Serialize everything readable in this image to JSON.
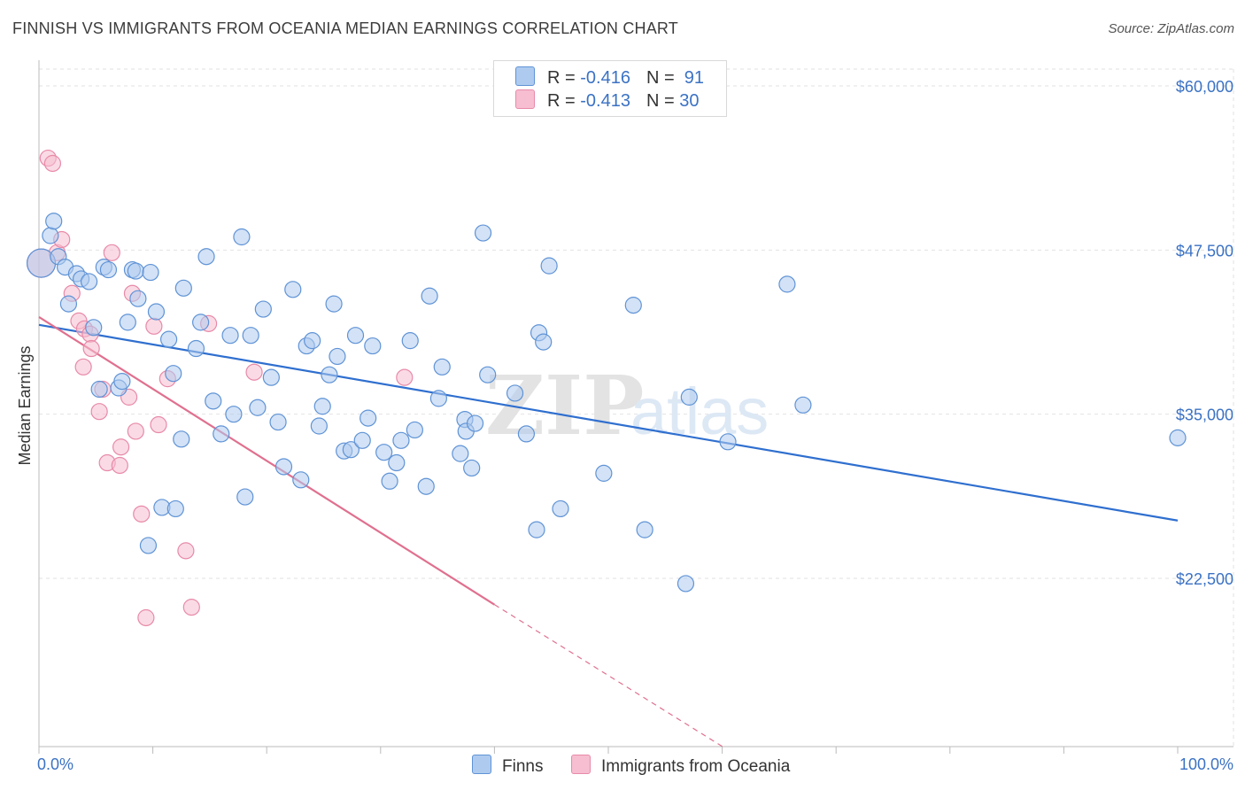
{
  "title": "FINNISH VS IMMIGRANTS FROM OCEANIA MEDIAN EARNINGS CORRELATION CHART",
  "source": "Source: ZipAtlas.com",
  "watermark": {
    "zip": "ZIP",
    "atlas": "atlas"
  },
  "legend": {
    "finns": {
      "r_label": "R = ",
      "r_value": "-0.416",
      "n_label": "N = ",
      "n_value": " 91"
    },
    "oceania": {
      "r_label": "R = ",
      "r_value": "-0.413",
      "n_label": "N = ",
      "n_value": "30"
    }
  },
  "bottom_legend": {
    "finns": "Finns",
    "oceania": "Immigrants from Oceania"
  },
  "colors": {
    "finns_fill": "#aecbef",
    "finns_stroke": "#5f93d6",
    "finns_line": "#2f6fcf",
    "oceania_fill": "#f6bed0",
    "oceania_stroke": "#e88aa8",
    "oceania_line": "#e0708f",
    "grid": "#e2e2e2",
    "axis_text": "#3b72c4"
  },
  "chart_data": {
    "type": "scatter",
    "title": "FINNISH VS IMMIGRANTS FROM OCEANIA MEDIAN EARNINGS CORRELATION CHART",
    "xlabel": "",
    "ylabel": "Median Earnings",
    "xlim": [
      0,
      100
    ],
    "ylim": [
      10000,
      62000
    ],
    "x_tick_labels": [
      "0.0%",
      "100.0%"
    ],
    "y_ticks": [
      22500,
      35000,
      47500,
      60000
    ],
    "y_tick_labels": [
      "$22,500",
      "$35,000",
      "$47,500",
      "$60,000"
    ],
    "series": [
      {
        "name": "Finns",
        "r": -0.416,
        "n": 91,
        "trend": {
          "x": [
            0,
            100
          ],
          "y": [
            41800,
            26900
          ]
        },
        "points": [
          [
            0.2,
            46500
          ],
          [
            1.0,
            48600
          ],
          [
            1.3,
            49700
          ],
          [
            1.7,
            47000
          ],
          [
            2.3,
            46200
          ],
          [
            2.6,
            43400
          ],
          [
            3.3,
            45700
          ],
          [
            3.7,
            45300
          ],
          [
            4.4,
            45100
          ],
          [
            4.8,
            41600
          ],
          [
            5.7,
            46200
          ],
          [
            6.1,
            46000
          ],
          [
            7.0,
            37000
          ],
          [
            7.3,
            37500
          ],
          [
            8.2,
            46000
          ],
          [
            7.8,
            42000
          ],
          [
            8.7,
            43800
          ],
          [
            8.5,
            45900
          ],
          [
            9.8,
            45800
          ],
          [
            10.3,
            42800
          ],
          [
            11.4,
            40700
          ],
          [
            11.8,
            38100
          ],
          [
            12.7,
            44600
          ],
          [
            13.8,
            40000
          ],
          [
            14.2,
            42000
          ],
          [
            14.7,
            47000
          ],
          [
            15.3,
            36000
          ],
          [
            16.0,
            33500
          ],
          [
            16.8,
            41000
          ],
          [
            17.1,
            35000
          ],
          [
            17.8,
            48500
          ],
          [
            18.6,
            41000
          ],
          [
            19.2,
            35500
          ],
          [
            19.7,
            43000
          ],
          [
            20.4,
            37800
          ],
          [
            21.0,
            34400
          ],
          [
            21.5,
            31000
          ],
          [
            22.3,
            44500
          ],
          [
            23.0,
            30000
          ],
          [
            23.5,
            40200
          ],
          [
            24.0,
            40600
          ],
          [
            24.6,
            34100
          ],
          [
            24.9,
            35600
          ],
          [
            25.5,
            38000
          ],
          [
            25.9,
            43400
          ],
          [
            26.2,
            39400
          ],
          [
            26.8,
            32200
          ],
          [
            27.4,
            32300
          ],
          [
            27.8,
            41000
          ],
          [
            28.4,
            33000
          ],
          [
            28.9,
            34700
          ],
          [
            29.3,
            40200
          ],
          [
            30.3,
            32100
          ],
          [
            30.8,
            29900
          ],
          [
            31.4,
            31300
          ],
          [
            31.8,
            33000
          ],
          [
            32.6,
            40600
          ],
          [
            33.0,
            33800
          ],
          [
            34.0,
            29500
          ],
          [
            34.3,
            44000
          ],
          [
            35.1,
            36200
          ],
          [
            35.4,
            38600
          ],
          [
            37.0,
            32000
          ],
          [
            37.4,
            34600
          ],
          [
            37.5,
            33700
          ],
          [
            38.0,
            30900
          ],
          [
            38.3,
            34300
          ],
          [
            39.0,
            48800
          ],
          [
            39.4,
            38000
          ],
          [
            41.8,
            36600
          ],
          [
            42.8,
            33500
          ],
          [
            43.7,
            26200
          ],
          [
            43.9,
            41200
          ],
          [
            44.3,
            40500
          ],
          [
            44.8,
            46300
          ],
          [
            45.8,
            27800
          ],
          [
            49.6,
            30500
          ],
          [
            52.2,
            43300
          ],
          [
            53.2,
            26200
          ],
          [
            56.8,
            22100
          ],
          [
            57.1,
            36300
          ],
          [
            60.5,
            32900
          ],
          [
            65.7,
            44900
          ],
          [
            67.1,
            35700
          ],
          [
            100.0,
            33200
          ],
          [
            10.8,
            27900
          ],
          [
            12.0,
            27800
          ],
          [
            9.6,
            25000
          ],
          [
            18.1,
            28700
          ],
          [
            12.5,
            33100
          ],
          [
            5.3,
            36900
          ]
        ]
      },
      {
        "name": "Immigrants from Oceania",
        "r": -0.413,
        "n": 30,
        "trend": {
          "x": [
            0,
            40
          ],
          "y": [
            42400,
            20500
          ]
        },
        "trend_dashed": {
          "x": [
            40,
            60
          ],
          "y": [
            20500,
            9700
          ]
        },
        "points": [
          [
            0.2,
            46500
          ],
          [
            0.8,
            54500
          ],
          [
            1.2,
            54100
          ],
          [
            1.6,
            47300
          ],
          [
            2.0,
            48300
          ],
          [
            2.9,
            44200
          ],
          [
            3.5,
            42100
          ],
          [
            4.0,
            41500
          ],
          [
            4.5,
            41100
          ],
          [
            4.6,
            40000
          ],
          [
            3.9,
            38600
          ],
          [
            5.3,
            35200
          ],
          [
            5.6,
            36900
          ],
          [
            6.0,
            31300
          ],
          [
            6.4,
            47300
          ],
          [
            7.1,
            31100
          ],
          [
            7.2,
            32500
          ],
          [
            7.9,
            36300
          ],
          [
            8.2,
            44200
          ],
          [
            8.5,
            33700
          ],
          [
            9.0,
            27400
          ],
          [
            9.4,
            19500
          ],
          [
            10.1,
            41700
          ],
          [
            10.5,
            34200
          ],
          [
            11.3,
            37700
          ],
          [
            12.9,
            24600
          ],
          [
            13.4,
            20300
          ],
          [
            14.9,
            41900
          ],
          [
            18.9,
            38200
          ],
          [
            32.1,
            37800
          ]
        ]
      }
    ]
  }
}
